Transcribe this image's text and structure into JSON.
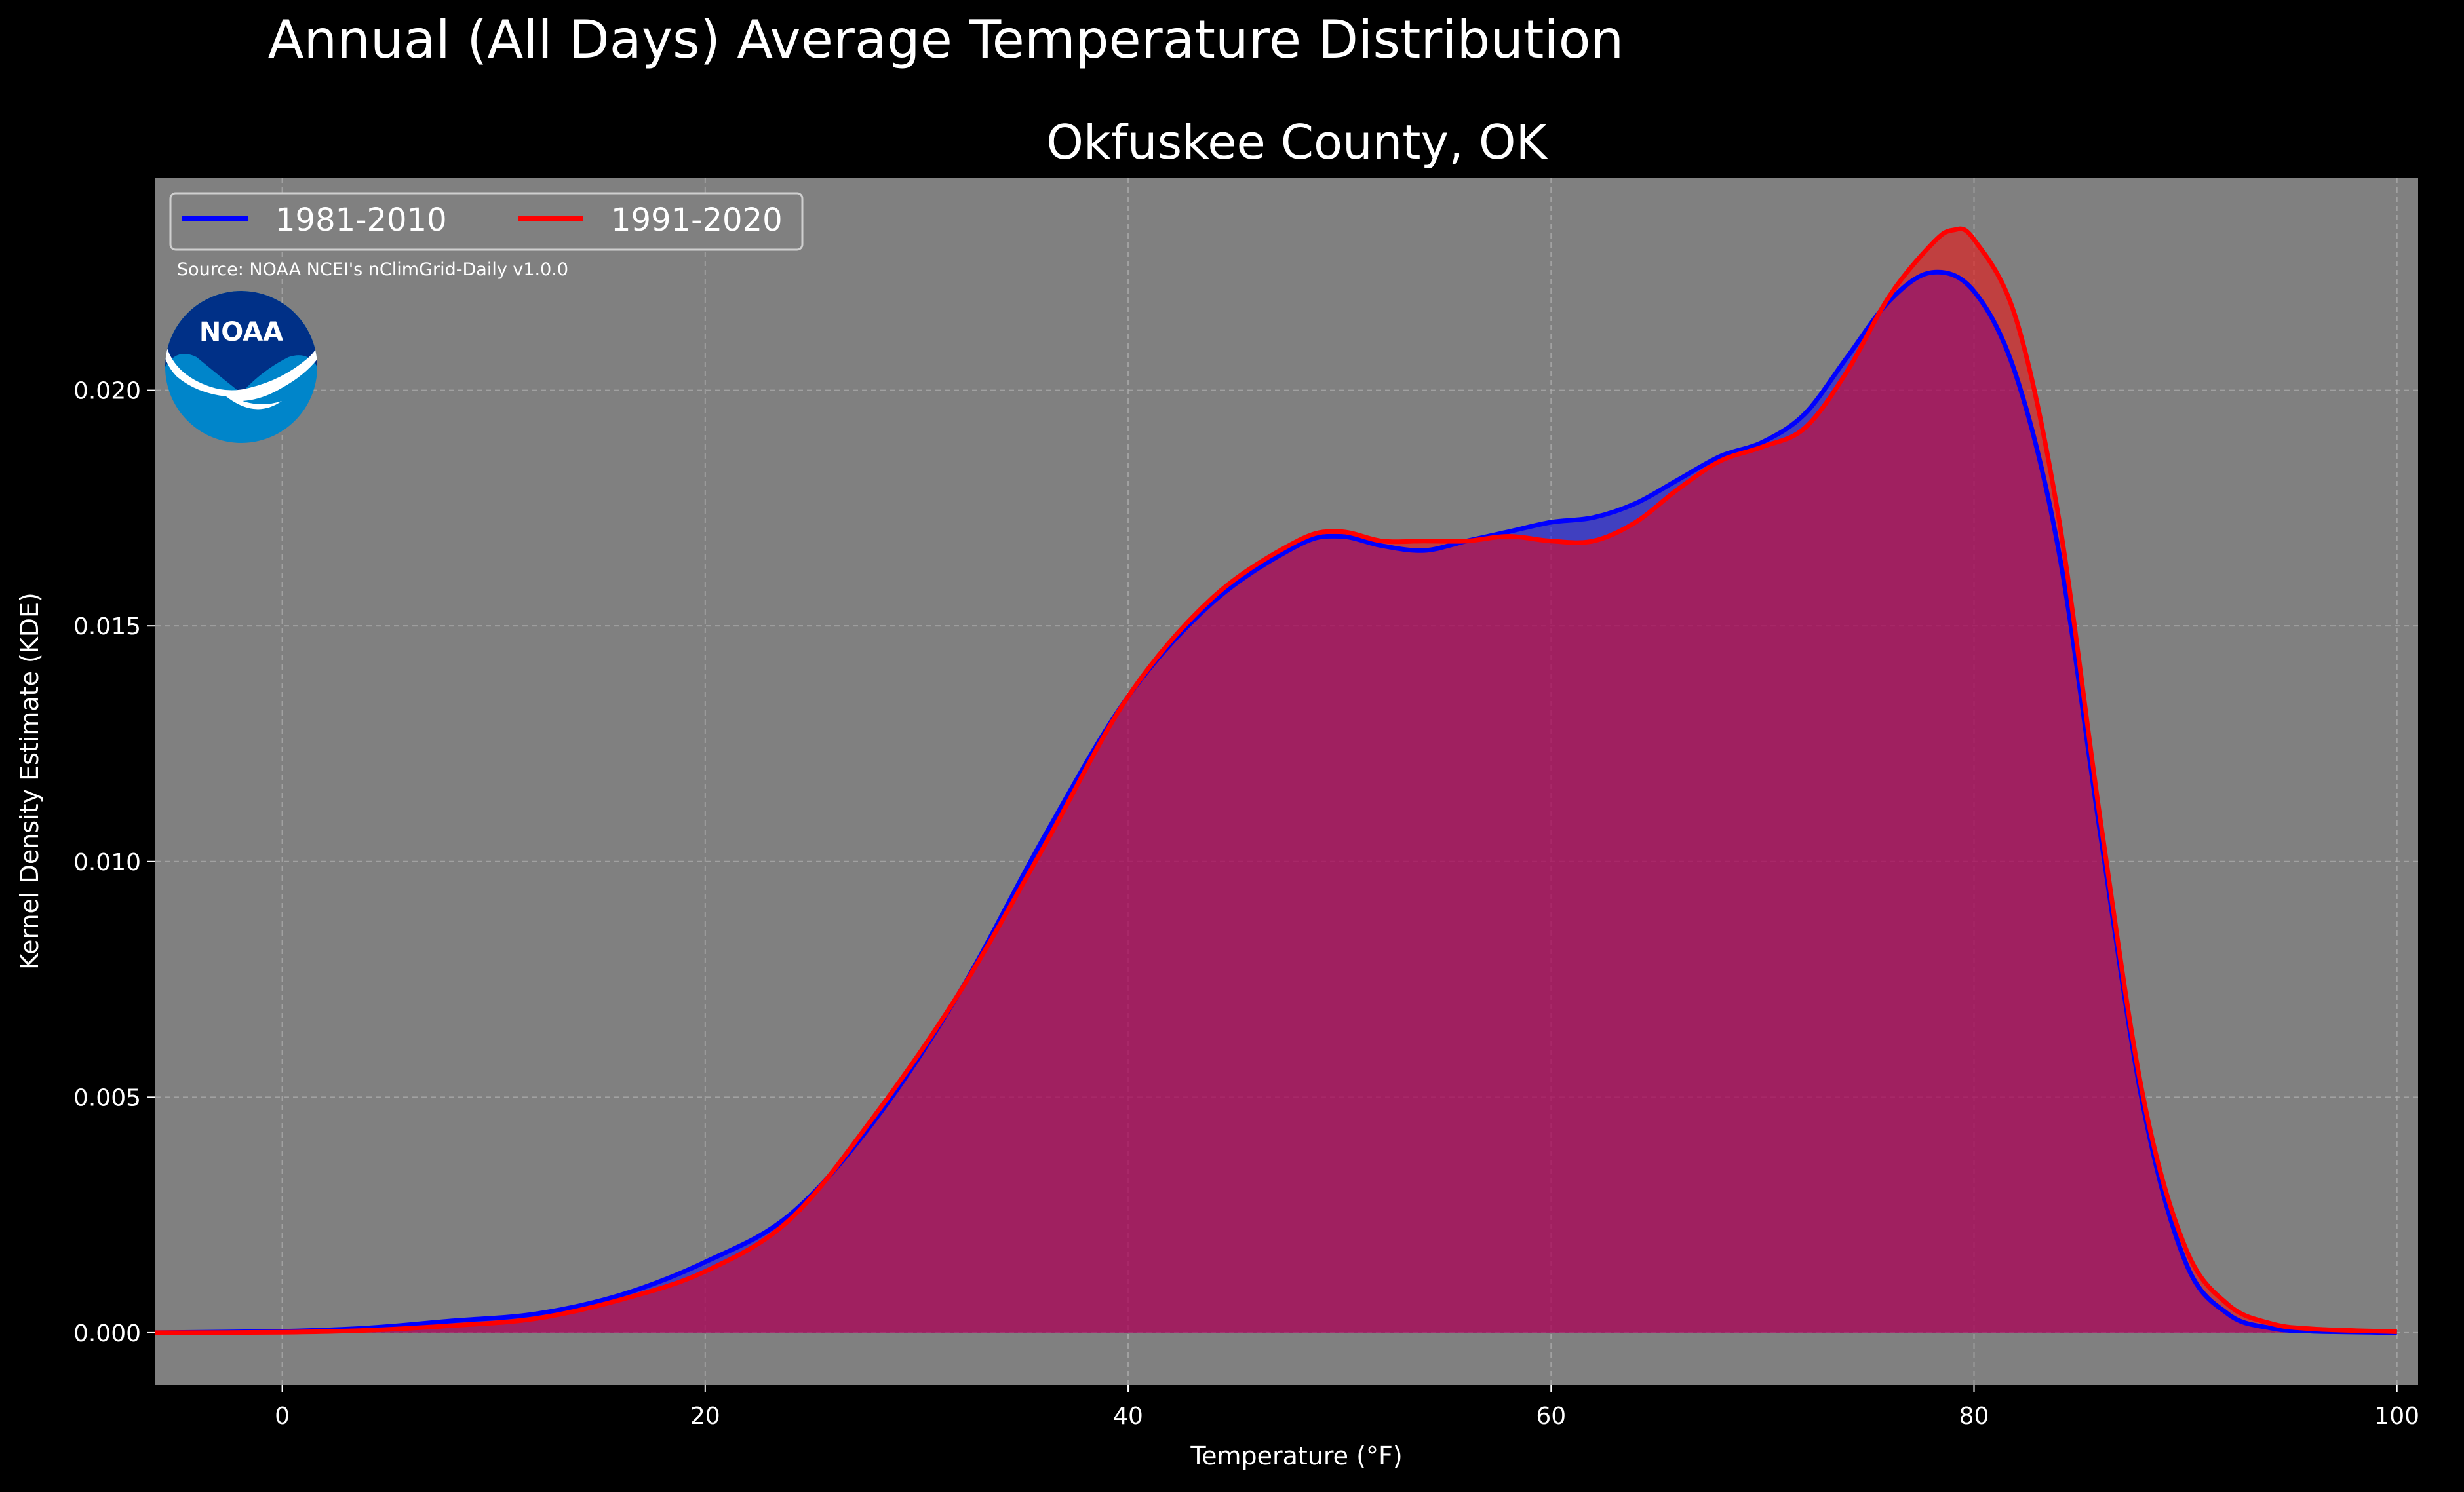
{
  "suptitle": "Annual (All Days) Average Temperature Distribution",
  "source_note": "Source: NOAA NCEI's nClimGrid-Daily v1.0.0",
  "logo": {
    "text": "NOAA",
    "colors": {
      "outer": "#0085CA",
      "inner": "#003087",
      "bird": "#FFFFFF"
    }
  },
  "colors": {
    "background": "#000000",
    "plot_bg": "#808080",
    "grid": "#B0B0B0",
    "text": "#FFFFFF",
    "overlap_fill": "#9E1E5A"
  },
  "chart_data": {
    "type": "area",
    "title": "Okfuskee County, OK",
    "xlabel": "Temperature (°F)",
    "ylabel": "Kernel Density Estimate (KDE)",
    "xlim": [
      -6,
      101
    ],
    "ylim": [
      -0.0011,
      0.0245
    ],
    "xticks": [
      0,
      20,
      40,
      60,
      80,
      100
    ],
    "xtick_labels": [
      "0",
      "20",
      "40",
      "60",
      "80",
      "100"
    ],
    "yticks": [
      0.0,
      0.005,
      0.01,
      0.015,
      0.02
    ],
    "ytick_labels": [
      "0.000",
      "0.005",
      "0.010",
      "0.015",
      "0.020"
    ],
    "grid": true,
    "legend_position": "top-left",
    "series": [
      {
        "name": "1981-2010",
        "color": "#0000FF",
        "x": [
          -6,
          0,
          4,
          8,
          12,
          16,
          20,
          24,
          28,
          32,
          36,
          40,
          44,
          48,
          50,
          52,
          54,
          56,
          58,
          60,
          62,
          64,
          66,
          68,
          70,
          72,
          74,
          76,
          78,
          80,
          82,
          84,
          86,
          88,
          90,
          92,
          94,
          96,
          100
        ],
        "y": [
          0.0,
          3e-05,
          0.0001,
          0.00025,
          0.0004,
          0.0008,
          0.0015,
          0.0025,
          0.0045,
          0.0072,
          0.0105,
          0.0135,
          0.0155,
          0.0167,
          0.0169,
          0.0167,
          0.0166,
          0.0168,
          0.017,
          0.0172,
          0.0173,
          0.0176,
          0.0181,
          0.0186,
          0.0189,
          0.0195,
          0.0207,
          0.0219,
          0.0225,
          0.0221,
          0.0203,
          0.0166,
          0.0105,
          0.0048,
          0.0015,
          0.0004,
          0.0001,
          3e-05,
          0.0
        ]
      },
      {
        "name": "1991-2020",
        "color": "#FF0000",
        "x": [
          -6,
          0,
          4,
          8,
          12,
          16,
          20,
          24,
          28,
          32,
          36,
          40,
          44,
          48,
          50,
          52,
          54,
          56,
          58,
          60,
          62,
          64,
          66,
          68,
          70,
          72,
          74,
          76,
          78,
          79,
          80,
          82,
          84,
          86,
          88,
          90,
          92,
          94,
          96,
          100
        ],
        "y": [
          0.0,
          1e-05,
          5e-05,
          0.00015,
          0.0003,
          0.0007,
          0.0013,
          0.0024,
          0.0046,
          0.0072,
          0.0103,
          0.0135,
          0.0156,
          0.0168,
          0.017,
          0.0168,
          0.0168,
          0.0168,
          0.0169,
          0.0168,
          0.0168,
          0.0172,
          0.0179,
          0.0185,
          0.0188,
          0.0192,
          0.0204,
          0.022,
          0.0231,
          0.0234,
          0.0232,
          0.0215,
          0.0173,
          0.0108,
          0.005,
          0.0018,
          0.0006,
          0.0002,
          8e-05,
          2e-05
        ]
      }
    ]
  }
}
